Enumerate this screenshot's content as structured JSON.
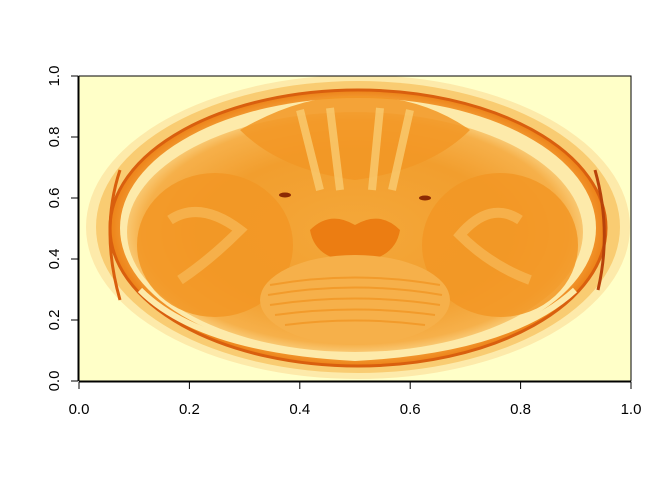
{
  "chart_data": {
    "type": "heatmap",
    "title": "",
    "xlabel": "",
    "ylabel": "",
    "xlim": [
      0,
      1
    ],
    "ylim": [
      0,
      1
    ],
    "x_ticks": [
      "0.0",
      "0.2",
      "0.4",
      "0.6",
      "0.8",
      "1.0"
    ],
    "y_ticks": [
      "0.0",
      "0.2",
      "0.4",
      "0.6",
      "0.8",
      "1.0"
    ],
    "grid": false,
    "legend": "none",
    "palette": [
      "#FFFFC8",
      "#FDEAAA",
      "#F9CC72",
      "#F6B04A",
      "#F29624",
      "#EC7D12",
      "#D95F0E",
      "#B8420A",
      "#8C2A04"
    ],
    "description_subject": "axial brain MRI slice rendered with heat colour scale"
  }
}
